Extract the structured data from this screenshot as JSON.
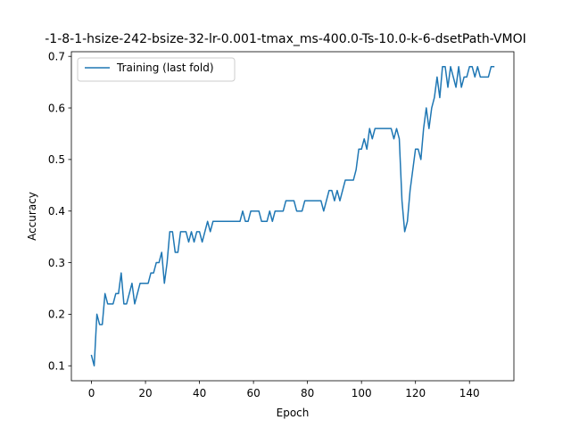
{
  "chart_data": {
    "type": "line",
    "title": "-1-8-1-hsize-242-bsize-32-lr-0.001-tmax_ms-400.0-Ts-10.0-k-6-dsetPath-VMOI",
    "xlabel": "Epoch",
    "ylabel": "Accuracy",
    "xlim": [
      -7.45,
      156.45
    ],
    "ylim": [
      0.071,
      0.709
    ],
    "xticks": [
      0,
      20,
      40,
      60,
      80,
      100,
      120,
      140
    ],
    "yticks": [
      0.1,
      0.2,
      0.3,
      0.4,
      0.5,
      0.6,
      0.7
    ],
    "xtick_labels": [
      "0",
      "20",
      "40",
      "60",
      "80",
      "100",
      "120",
      "140"
    ],
    "ytick_labels": [
      "0.1",
      "0.2",
      "0.3",
      "0.4",
      "0.5",
      "0.6",
      "0.7"
    ],
    "grid": false,
    "legend_position": "upper left",
    "series": [
      {
        "name": "Training (last fold)",
        "color": "#1f77b4",
        "x": [
          0,
          1,
          2,
          3,
          4,
          5,
          6,
          7,
          8,
          9,
          10,
          11,
          12,
          13,
          14,
          15,
          16,
          17,
          18,
          19,
          20,
          21,
          22,
          23,
          24,
          25,
          26,
          27,
          28,
          29,
          30,
          31,
          32,
          33,
          34,
          35,
          36,
          37,
          38,
          39,
          40,
          41,
          42,
          43,
          44,
          45,
          46,
          47,
          48,
          49,
          50,
          51,
          52,
          53,
          54,
          55,
          56,
          57,
          58,
          59,
          60,
          61,
          62,
          63,
          64,
          65,
          66,
          67,
          68,
          69,
          70,
          71,
          72,
          73,
          74,
          75,
          76,
          77,
          78,
          79,
          80,
          81,
          82,
          83,
          84,
          85,
          86,
          87,
          88,
          89,
          90,
          91,
          92,
          93,
          94,
          95,
          96,
          97,
          98,
          99,
          100,
          101,
          102,
          103,
          104,
          105,
          106,
          107,
          108,
          109,
          110,
          111,
          112,
          113,
          114,
          115,
          116,
          117,
          118,
          119,
          120,
          121,
          122,
          123,
          124,
          125,
          126,
          127,
          128,
          129,
          130,
          131,
          132,
          133,
          134,
          135,
          136,
          137,
          138,
          139,
          140,
          141,
          142,
          143,
          144,
          145,
          146,
          147,
          148,
          149
        ],
        "y": [
          0.12,
          0.1,
          0.2,
          0.18,
          0.18,
          0.24,
          0.22,
          0.22,
          0.22,
          0.24,
          0.24,
          0.28,
          0.22,
          0.22,
          0.24,
          0.26,
          0.22,
          0.24,
          0.26,
          0.26,
          0.26,
          0.26,
          0.28,
          0.28,
          0.3,
          0.3,
          0.32,
          0.26,
          0.3,
          0.36,
          0.36,
          0.32,
          0.32,
          0.36,
          0.36,
          0.36,
          0.34,
          0.36,
          0.34,
          0.36,
          0.36,
          0.34,
          0.36,
          0.38,
          0.36,
          0.38,
          0.38,
          0.38,
          0.38,
          0.38,
          0.38,
          0.38,
          0.38,
          0.38,
          0.38,
          0.38,
          0.4,
          0.38,
          0.38,
          0.4,
          0.4,
          0.4,
          0.4,
          0.38,
          0.38,
          0.38,
          0.4,
          0.38,
          0.4,
          0.4,
          0.4,
          0.4,
          0.42,
          0.42,
          0.42,
          0.42,
          0.4,
          0.4,
          0.4,
          0.42,
          0.42,
          0.42,
          0.42,
          0.42,
          0.42,
          0.42,
          0.4,
          0.42,
          0.44,
          0.44,
          0.42,
          0.44,
          0.42,
          0.44,
          0.46,
          0.46,
          0.46,
          0.46,
          0.48,
          0.52,
          0.52,
          0.54,
          0.52,
          0.56,
          0.54,
          0.56,
          0.56,
          0.56,
          0.56,
          0.56,
          0.56,
          0.56,
          0.54,
          0.56,
          0.54,
          0.42,
          0.36,
          0.38,
          0.44,
          0.48,
          0.52,
          0.52,
          0.5,
          0.56,
          0.6,
          0.56,
          0.6,
          0.62,
          0.66,
          0.62,
          0.68,
          0.68,
          0.64,
          0.68,
          0.66,
          0.64,
          0.68,
          0.64,
          0.66,
          0.66,
          0.68,
          0.68,
          0.66,
          0.68,
          0.66,
          0.66,
          0.66,
          0.66,
          0.68,
          0.68
        ]
      }
    ]
  }
}
